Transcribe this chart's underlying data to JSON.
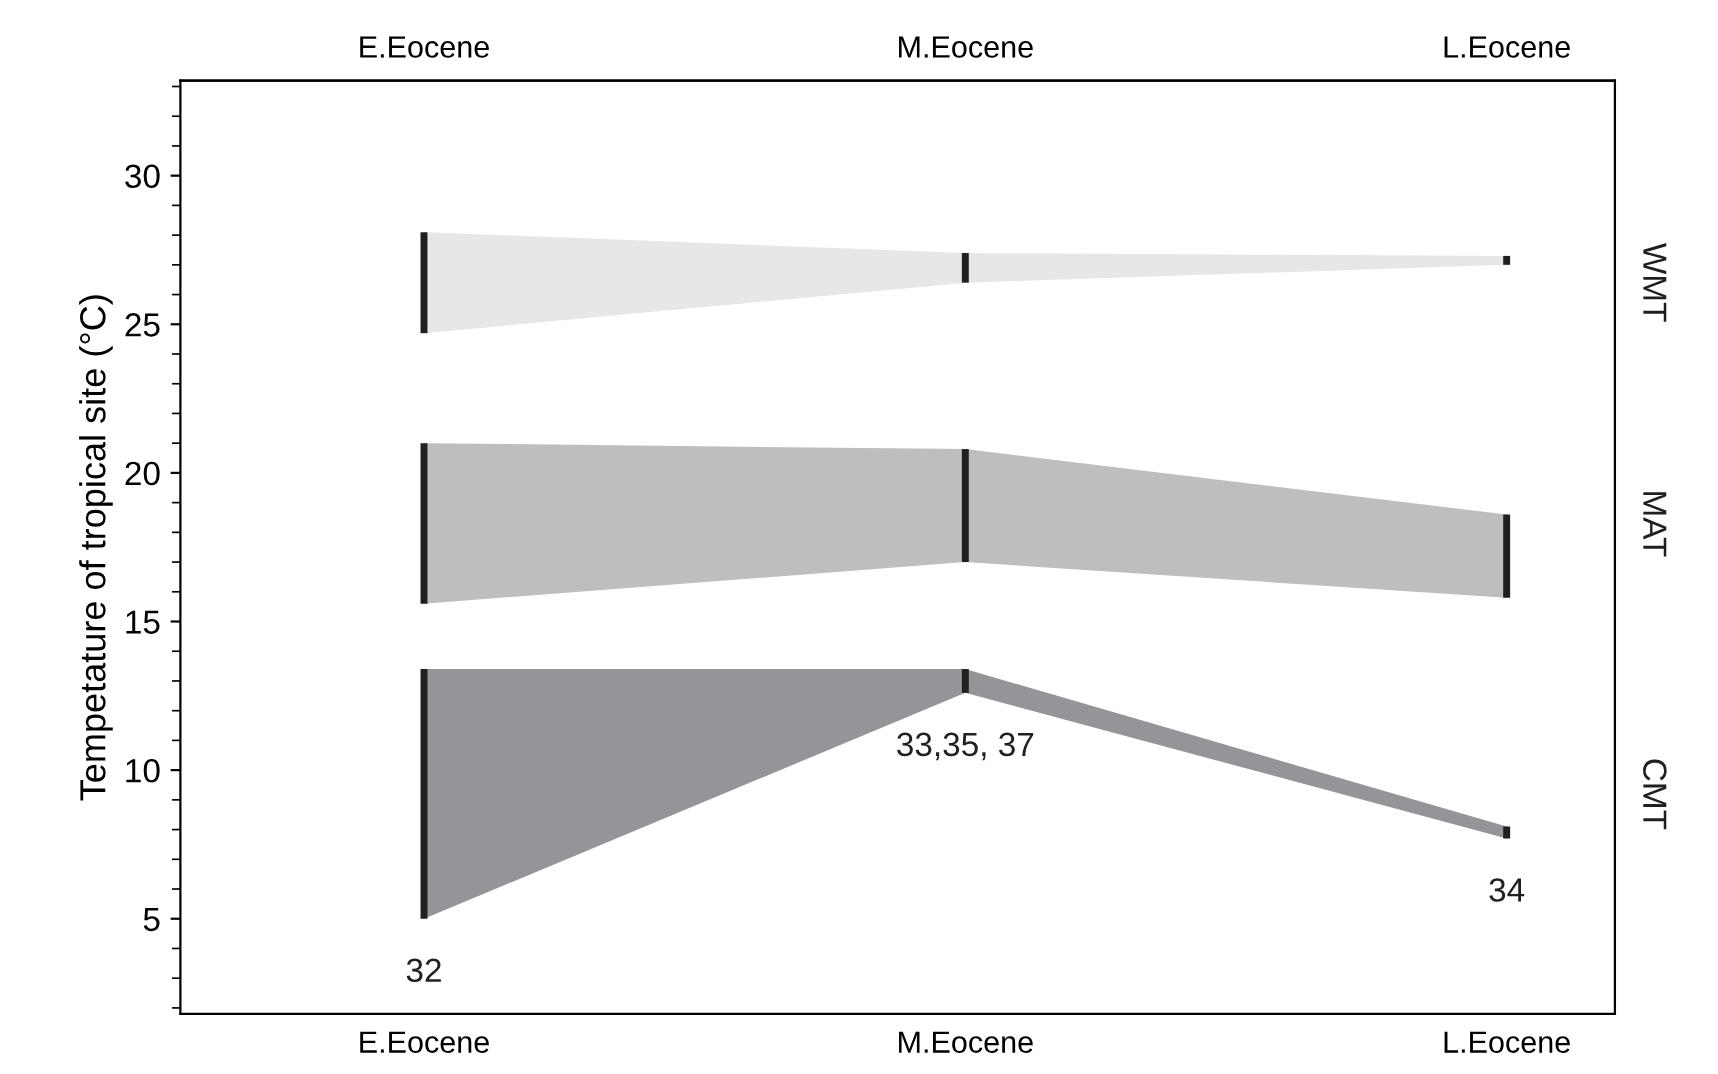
{
  "chart_data": {
    "type": "area",
    "ylabel": "Tempetature of tropical site (°C)",
    "categories": [
      "E.Eocene",
      "M.Eocene",
      "L.Eocene"
    ],
    "series": [
      {
        "name": "WMT",
        "color": "#e6e7e8",
        "values": [
          28.1,
          27.4,
          27.3
        ],
        "errors": [
          [
            24.7,
            28.1
          ],
          [
            26.4,
            27.4
          ],
          [
            27.0,
            27.3
          ]
        ]
      },
      {
        "name": "MAT",
        "color": "#bcbec0",
        "values": [
          21.0,
          20.8,
          18.6
        ],
        "errors": [
          [
            15.6,
            21.0
          ],
          [
            17.0,
            20.8
          ],
          [
            15.8,
            18.6
          ]
        ]
      },
      {
        "name": "CMT",
        "color": "#939598",
        "values": [
          13.4,
          13.4,
          8.1
        ],
        "errors": [
          [
            5.0,
            13.4
          ],
          [
            12.6,
            13.4
          ],
          [
            7.7,
            8.1
          ]
        ]
      }
    ],
    "annotations": [
      "32",
      "33,35, 37",
      "34"
    ],
    "ylim": [
      1.8,
      33.2
    ],
    "yticks": [
      5,
      10,
      15,
      20,
      25,
      30
    ],
    "grid": false,
    "legend": false
  }
}
